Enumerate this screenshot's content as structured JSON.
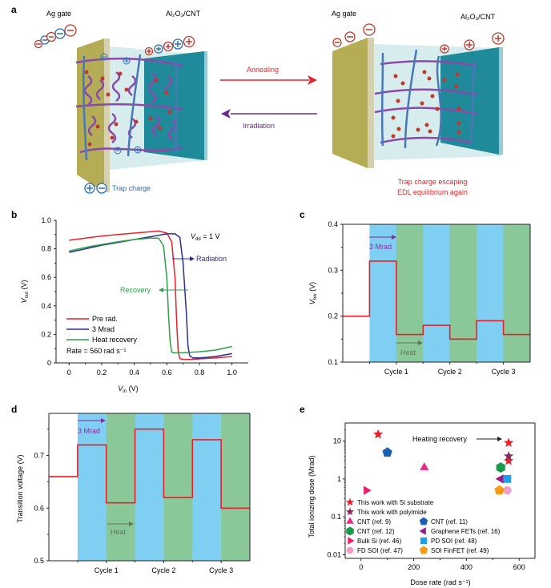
{
  "panel_labels": {
    "a": "a",
    "b": "b",
    "c": "c",
    "d": "d",
    "e": "e"
  },
  "schematic": {
    "left": {
      "gate_label": "Ag gate",
      "channel_label": "Al₂O₃/CNT",
      "trap_legend": "Trap charge"
    },
    "right": {
      "gate_label": "Ag gate",
      "channel_label": "Al₂O₃/CNT",
      "caption_line1": "Trap charge escaping",
      "caption_line2": "EDL equilibrium again"
    },
    "arrow_forward_label": "Annealing",
    "arrow_backward_label": "Irradiation",
    "colors": {
      "anneal": "#e8202a",
      "irradiation": "#6a2a95",
      "trap_text": "#2a6fb5",
      "caption": "#e8202a"
    }
  },
  "chart_data": [
    {
      "id": "b",
      "type": "line",
      "xlabel": "V_in (V)",
      "ylabel": "V_out (V)",
      "xlim": [
        -0.08,
        1.1
      ],
      "ylim": [
        0,
        1.0
      ],
      "xticks": [
        "0",
        "0.2",
        "0.4",
        "0.6",
        "0.8",
        "1.0"
      ],
      "xtick_values": [
        0,
        0.2,
        0.4,
        0.6,
        0.8,
        1.0
      ],
      "yticks": [
        "0",
        "0.2",
        "0.4",
        "0.6",
        "0.8",
        "1.0"
      ],
      "ytick_values": [
        0,
        0.2,
        0.4,
        0.6,
        0.8,
        1.0
      ],
      "annotations": {
        "vdd": "V_dd = 1 V",
        "radiation": "Radiation",
        "recovery": "Recovery",
        "rate": "Rate = 560 rad s⁻¹"
      },
      "series": [
        {
          "name": "Pre rad.",
          "color": "#e8202a",
          "x": [
            0,
            0.1,
            0.2,
            0.3,
            0.4,
            0.5,
            0.55,
            0.6,
            0.63,
            0.65,
            0.66,
            0.67,
            0.68,
            0.7,
            0.75,
            0.8,
            0.9,
            1.0
          ],
          "y": [
            0.86,
            0.875,
            0.89,
            0.9,
            0.91,
            0.92,
            0.925,
            0.91,
            0.85,
            0.6,
            0.3,
            0.08,
            0.03,
            0.025,
            0.025,
            0.028,
            0.035,
            0.045
          ]
        },
        {
          "name": "3 Mrad",
          "color": "#2b2f8f",
          "x": [
            0,
            0.1,
            0.2,
            0.3,
            0.4,
            0.5,
            0.6,
            0.65,
            0.68,
            0.7,
            0.72,
            0.73,
            0.74,
            0.76,
            0.8,
            0.9,
            1.0
          ],
          "y": [
            0.775,
            0.8,
            0.825,
            0.845,
            0.865,
            0.885,
            0.905,
            0.905,
            0.88,
            0.7,
            0.35,
            0.12,
            0.05,
            0.035,
            0.035,
            0.045,
            0.065
          ]
        },
        {
          "name": "Heat recovery",
          "color": "#2ea04a",
          "x": [
            0,
            0.1,
            0.2,
            0.3,
            0.4,
            0.5,
            0.55,
            0.58,
            0.6,
            0.61,
            0.62,
            0.63,
            0.65,
            0.7,
            0.8,
            0.9,
            1.0
          ],
          "y": [
            0.785,
            0.81,
            0.83,
            0.85,
            0.865,
            0.875,
            0.875,
            0.82,
            0.6,
            0.35,
            0.15,
            0.075,
            0.07,
            0.072,
            0.078,
            0.09,
            0.115
          ]
        }
      ]
    },
    {
      "id": "c",
      "type": "line",
      "xlabel": "",
      "ylabel": "V_bw (V)",
      "ylim": [
        0.1,
        0.4
      ],
      "yticks": [
        "0.1",
        "0.2",
        "0.3",
        "0.4"
      ],
      "ytick_values": [
        0.1,
        0.2,
        0.3,
        0.4
      ],
      "categories": [
        "Cycle 1",
        "Cycle 2",
        "Cycle 3"
      ],
      "segments": [
        "initial",
        "irradiation",
        "heat",
        "irradiation",
        "heat",
        "irradiation",
        "heat"
      ],
      "values": [
        0.2,
        0.32,
        0.16,
        0.18,
        0.15,
        0.19,
        0.16
      ],
      "annotations": {
        "irradiation": "3 Mrad",
        "heat": "Heat"
      },
      "colors": {
        "line": "#e8202a",
        "irradiation_band": "#7ecff2",
        "heat_band": "#8ac89a",
        "irr_text": "#8a2aa0",
        "heat_text": "#5a7a5a"
      }
    },
    {
      "id": "d",
      "type": "line",
      "xlabel": "",
      "ylabel": "Transition voltage (V)",
      "ylim": [
        0.5,
        0.78
      ],
      "yticks": [
        "0.5",
        "0.6",
        "0.7"
      ],
      "ytick_values": [
        0.5,
        0.6,
        0.7
      ],
      "categories": [
        "Cycle 1",
        "Cycle 2",
        "Cycle 3"
      ],
      "segments": [
        "initial",
        "irradiation",
        "heat",
        "irradiation",
        "heat",
        "irradiation",
        "heat"
      ],
      "values": [
        0.66,
        0.72,
        0.61,
        0.75,
        0.62,
        0.73,
        0.6
      ],
      "annotations": {
        "irradiation": "3 Mrad",
        "heat": "Heat"
      },
      "colors": {
        "line": "#e8202a",
        "irradiation_band": "#7ecff2",
        "heat_band": "#8ac89a",
        "irr_text": "#8a2aa0",
        "heat_text": "#5a7a5a"
      }
    },
    {
      "id": "e",
      "type": "scatter",
      "xlabel": "Dose rate (rad s⁻¹)",
      "ylabel": "Total ionizing dose (Mrad)",
      "xlim": [
        -60,
        660
      ],
      "ylim_log": [
        0.008,
        30
      ],
      "xticks": [
        "0",
        "200",
        "400",
        "600"
      ],
      "xtick_values": [
        0,
        200,
        400,
        600
      ],
      "yticks": [
        "0.01",
        "0.1",
        "1",
        "10"
      ],
      "ytick_values": [
        0.01,
        0.1,
        1,
        10
      ],
      "annotation": "Heating recovery",
      "series": [
        {
          "name": "This work with Si substrate",
          "marker": "star",
          "color": "#e8202a",
          "points": [
            [
              65,
              15
            ],
            [
              560,
              9
            ],
            [
              560,
              3
            ]
          ]
        },
        {
          "name": "This work with polyimide",
          "marker": "star",
          "color": "#8b2a5e",
          "points": [
            [
              560,
              4
            ]
          ]
        },
        {
          "name": "CNT (ref. 9)",
          "marker": "triangle-up",
          "color": "#e82a8a",
          "points": [
            [
              240,
              2
            ]
          ]
        },
        {
          "name": "CNT (ref. 11)",
          "marker": "pentagon",
          "color": "#1a5fb0",
          "points": [
            [
              100,
              5
            ]
          ]
        },
        {
          "name": "CNT (ref. 12)",
          "marker": "hexagon",
          "color": "#1a9a4a",
          "points": [
            [
              530,
              2
            ]
          ]
        },
        {
          "name": "Graphene FETs (ref. 16)",
          "marker": "triangle-left",
          "color": "#9a1a8a",
          "points": [
            [
              530,
              1
            ]
          ]
        },
        {
          "name": "Bulk Si (ref. 46)",
          "marker": "triangle-right",
          "color": "#e8206a",
          "points": [
            [
              20,
              0.5
            ]
          ]
        },
        {
          "name": "PD SOI (ref. 48)",
          "marker": "square",
          "color": "#1aa0e8",
          "points": [
            [
              555,
              1
            ]
          ]
        },
        {
          "name": "FD SOI (ref. 47)",
          "marker": "sphere",
          "color": "#f0a0c8",
          "points": [
            [
              555,
              0.5
            ]
          ]
        },
        {
          "name": "SOI FinFET (ref. 49)",
          "marker": "pentagon",
          "color": "#f59a10",
          "points": [
            [
              525,
              0.5
            ]
          ]
        }
      ]
    }
  ]
}
